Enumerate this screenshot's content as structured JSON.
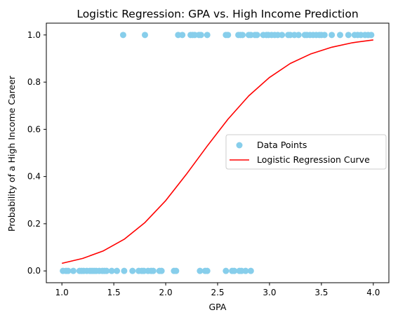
{
  "chart_data": {
    "type": "scatter",
    "title": "Logistic Regression: GPA vs. High Income Prediction",
    "xlabel": "GPA",
    "ylabel": "Probability of a High Income Career",
    "xlim": [
      0.85,
      4.15
    ],
    "ylim": [
      -0.05,
      1.05
    ],
    "xticks": [
      1.0,
      1.5,
      2.0,
      2.5,
      3.0,
      3.5,
      4.0
    ],
    "xtick_labels": [
      "1.0",
      "1.5",
      "2.0",
      "2.5",
      "3.0",
      "3.5",
      "4.0"
    ],
    "yticks": [
      0.0,
      0.2,
      0.4,
      0.6,
      0.8,
      1.0
    ],
    "ytick_labels": [
      "0.0",
      "0.2",
      "0.4",
      "0.6",
      "0.8",
      "1.0"
    ],
    "grid": false,
    "legend_position": "center-right",
    "series": [
      {
        "name": "Data Points",
        "type": "scatter",
        "color": "#87ceeb",
        "points": [
          [
            1.01,
            0
          ],
          [
            1.04,
            0
          ],
          [
            1.06,
            0
          ],
          [
            1.11,
            0
          ],
          [
            1.17,
            0
          ],
          [
            1.19,
            0
          ],
          [
            1.21,
            0
          ],
          [
            1.24,
            0
          ],
          [
            1.27,
            0
          ],
          [
            1.29,
            0
          ],
          [
            1.31,
            0
          ],
          [
            1.33,
            0
          ],
          [
            1.36,
            0
          ],
          [
            1.39,
            0
          ],
          [
            1.41,
            0
          ],
          [
            1.43,
            0
          ],
          [
            1.48,
            0
          ],
          [
            1.53,
            0
          ],
          [
            1.6,
            0
          ],
          [
            1.68,
            0
          ],
          [
            1.74,
            0
          ],
          [
            1.77,
            0
          ],
          [
            1.79,
            0
          ],
          [
            1.83,
            0
          ],
          [
            1.86,
            0
          ],
          [
            1.88,
            0
          ],
          [
            1.94,
            0
          ],
          [
            1.96,
            0
          ],
          [
            2.08,
            0
          ],
          [
            2.1,
            0
          ],
          [
            2.33,
            0
          ],
          [
            2.38,
            0
          ],
          [
            2.4,
            0
          ],
          [
            2.58,
            0
          ],
          [
            2.64,
            0
          ],
          [
            2.66,
            0
          ],
          [
            2.71,
            0
          ],
          [
            2.73,
            0
          ],
          [
            2.77,
            0
          ],
          [
            2.82,
            0
          ],
          [
            1.59,
            1
          ],
          [
            1.8,
            1
          ],
          [
            2.12,
            1
          ],
          [
            2.16,
            1
          ],
          [
            2.24,
            1
          ],
          [
            2.26,
            1
          ],
          [
            2.28,
            1
          ],
          [
            2.32,
            1
          ],
          [
            2.34,
            1
          ],
          [
            2.4,
            1
          ],
          [
            2.58,
            1
          ],
          [
            2.6,
            1
          ],
          [
            2.7,
            1
          ],
          [
            2.72,
            1
          ],
          [
            2.74,
            1
          ],
          [
            2.8,
            1
          ],
          [
            2.82,
            1
          ],
          [
            2.86,
            1
          ],
          [
            2.88,
            1
          ],
          [
            2.94,
            1
          ],
          [
            2.97,
            1
          ],
          [
            2.99,
            1
          ],
          [
            3.02,
            1
          ],
          [
            3.05,
            1
          ],
          [
            3.08,
            1
          ],
          [
            3.12,
            1
          ],
          [
            3.18,
            1
          ],
          [
            3.2,
            1
          ],
          [
            3.24,
            1
          ],
          [
            3.28,
            1
          ],
          [
            3.34,
            1
          ],
          [
            3.36,
            1
          ],
          [
            3.39,
            1
          ],
          [
            3.42,
            1
          ],
          [
            3.45,
            1
          ],
          [
            3.48,
            1
          ],
          [
            3.5,
            1
          ],
          [
            3.53,
            1
          ],
          [
            3.6,
            1
          ],
          [
            3.68,
            1
          ],
          [
            3.76,
            1
          ],
          [
            3.82,
            1
          ],
          [
            3.85,
            1
          ],
          [
            3.88,
            1
          ],
          [
            3.92,
            1
          ],
          [
            3.95,
            1
          ],
          [
            3.98,
            1
          ]
        ]
      },
      {
        "name": "Logistic Regression Curve",
        "type": "line",
        "color": "#ff0000",
        "x": [
          1.0,
          1.2,
          1.4,
          1.6,
          1.8,
          2.0,
          2.2,
          2.4,
          2.6,
          2.8,
          3.0,
          3.2,
          3.4,
          3.6,
          3.8,
          4.0
        ],
        "y": [
          0.032,
          0.053,
          0.085,
          0.134,
          0.205,
          0.298,
          0.41,
          0.529,
          0.643,
          0.742,
          0.82,
          0.879,
          0.92,
          0.948,
          0.967,
          0.979
        ]
      }
    ]
  }
}
